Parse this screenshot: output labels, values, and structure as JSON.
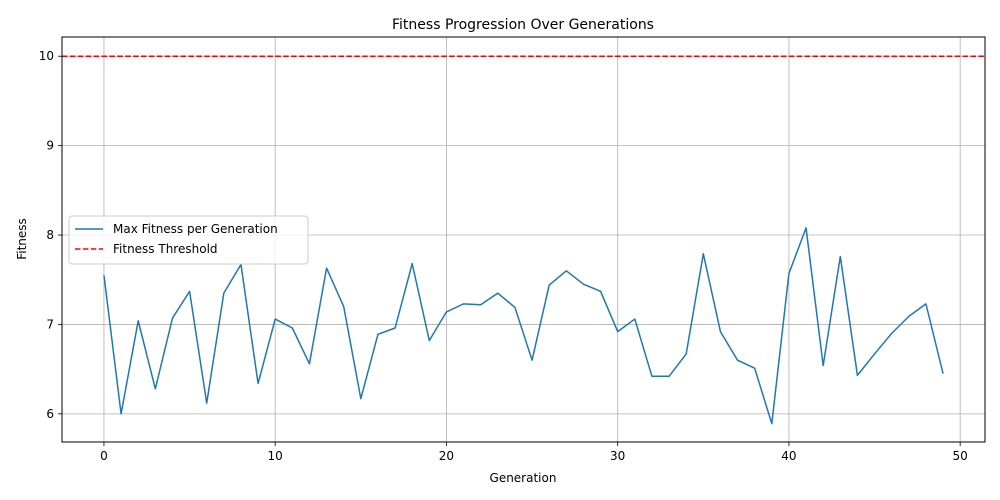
{
  "chart_data": {
    "type": "line",
    "title": "Fitness Progression Over Generations",
    "xlabel": "Generation",
    "ylabel": "Fitness",
    "xlim": [
      -2.45,
      51.45
    ],
    "ylim": [
      5.685,
      10.215
    ],
    "xticks": [
      0,
      10,
      20,
      30,
      40,
      50
    ],
    "yticks": [
      6,
      7,
      8,
      9,
      10
    ],
    "grid": true,
    "legend_position": "center-left",
    "series": [
      {
        "name": "Max Fitness per Generation",
        "color": "#1f77b4",
        "style": "solid",
        "x": [
          0,
          1,
          2,
          3,
          4,
          5,
          6,
          7,
          8,
          9,
          10,
          11,
          12,
          13,
          14,
          15,
          16,
          17,
          18,
          19,
          20,
          21,
          22,
          23,
          24,
          25,
          26,
          27,
          28,
          29,
          30,
          31,
          32,
          33,
          34,
          35,
          36,
          37,
          38,
          39,
          40,
          41,
          42,
          43,
          44,
          45,
          46,
          47,
          48,
          49
        ],
        "values": [
          7.55,
          6.0,
          7.04,
          6.28,
          7.07,
          7.37,
          6.12,
          7.35,
          7.67,
          6.34,
          7.06,
          6.96,
          6.56,
          7.63,
          7.2,
          6.17,
          6.89,
          6.96,
          7.68,
          6.82,
          7.14,
          7.23,
          7.22,
          7.35,
          7.19,
          6.6,
          7.44,
          7.6,
          7.45,
          7.37,
          6.92,
          7.06,
          6.42,
          6.42,
          6.67,
          7.79,
          6.92,
          6.6,
          6.51,
          5.89,
          7.57,
          8.08,
          6.54,
          7.76,
          6.43,
          6.67,
          6.9,
          7.09,
          7.23,
          6.45
        ]
      },
      {
        "name": "Fitness Threshold",
        "color": "#ff0000",
        "style": "dashed",
        "hline": 10
      }
    ]
  }
}
